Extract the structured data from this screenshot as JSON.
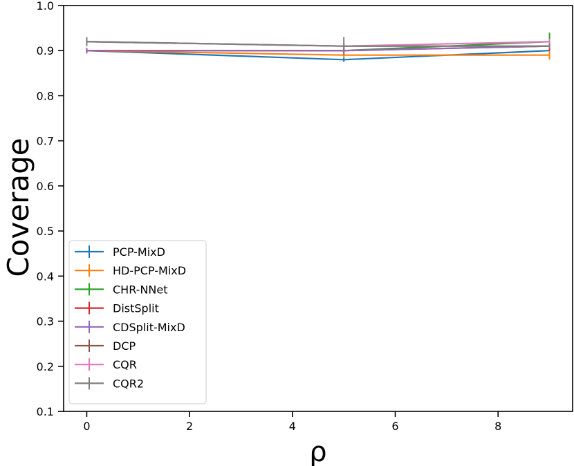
{
  "chart_data": {
    "type": "line",
    "title": "",
    "xlabel": "ρ",
    "ylabel": "Coverage",
    "xlim": [
      -0.45,
      9.45
    ],
    "ylim": [
      0.1,
      1.0
    ],
    "xticks": [
      0,
      2,
      4,
      6,
      8
    ],
    "xtick_labels": [
      "0",
      "2",
      "4",
      "6",
      "8"
    ],
    "yticks": [
      0.1,
      0.2,
      0.3,
      0.4,
      0.5,
      0.6,
      0.7,
      0.8,
      0.9,
      1.0
    ],
    "ytick_labels": [
      "0.1",
      "0.2",
      "0.3",
      "0.4",
      "0.5",
      "0.6",
      "0.7",
      "0.8",
      "0.9",
      "1.0"
    ],
    "x": [
      0,
      5,
      9
    ],
    "legend_position": "lower-left",
    "series": [
      {
        "name": "PCP-MixD",
        "color": "#1f77b4",
        "values": [
          0.9,
          0.88,
          0.9
        ],
        "errors": [
          0.005,
          0.005,
          0.005
        ]
      },
      {
        "name": "HD-PCP-MixD",
        "color": "#ff7f0e",
        "values": [
          0.9,
          0.89,
          0.89
        ],
        "errors": [
          0.006,
          0.006,
          0.01
        ]
      },
      {
        "name": "CHR-NNet",
        "color": "#2ca02c",
        "values": [
          0.9,
          0.9,
          0.92
        ],
        "errors": [
          0.006,
          0.006,
          0.02
        ]
      },
      {
        "name": "DistSplit",
        "color": "#d62728",
        "values": [
          0.9,
          0.9,
          0.91
        ],
        "errors": [
          0.006,
          0.006,
          0.01
        ]
      },
      {
        "name": "CDSplit-MixD",
        "color": "#9467bd",
        "values": [
          0.9,
          0.9,
          0.91
        ],
        "errors": [
          0.006,
          0.006,
          0.006
        ]
      },
      {
        "name": "DCP",
        "color": "#8c564b",
        "values": [
          0.92,
          0.91,
          0.91
        ],
        "errors": [
          0.006,
          0.006,
          0.006
        ]
      },
      {
        "name": "CQR",
        "color": "#e377c2",
        "values": [
          0.92,
          0.91,
          0.92
        ],
        "errors": [
          0.006,
          0.006,
          0.006
        ]
      },
      {
        "name": "CQR2",
        "color": "#7f7f7f",
        "values": [
          0.92,
          0.91,
          0.91
        ],
        "errors": [
          0.01,
          0.02,
          0.006
        ]
      }
    ]
  }
}
